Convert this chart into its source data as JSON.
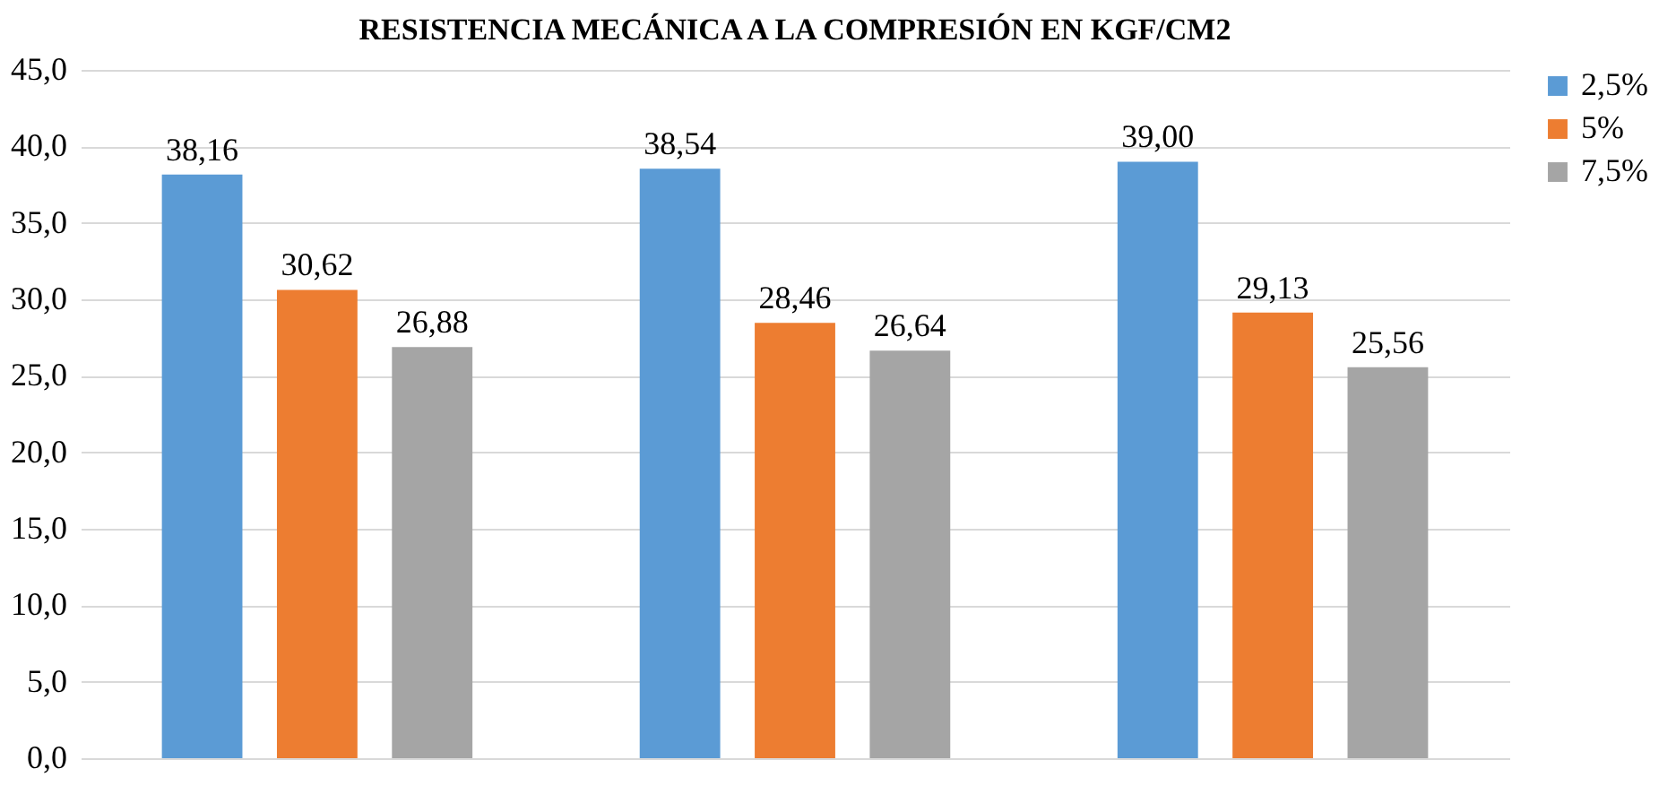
{
  "chart_data": {
    "type": "bar",
    "title": "RESISTENCIA MECÁNICA A LA COMPRESIÓN EN KGF/CM2",
    "categories": [
      null,
      null,
      null
    ],
    "series": [
      {
        "name": "2,5%",
        "color": "#5b9bd5",
        "values": [
          38.16,
          38.54,
          39.0
        ],
        "value_labels": [
          "38,16",
          "38,54",
          "39,00"
        ]
      },
      {
        "name": "5%",
        "color": "#ed7d31",
        "values": [
          30.62,
          28.46,
          29.13
        ],
        "value_labels": [
          "30,62",
          "28,46",
          "29,13"
        ]
      },
      {
        "name": "7,5%",
        "color": "#a5a5a5",
        "values": [
          26.88,
          26.64,
          25.56
        ],
        "value_labels": [
          "26,88",
          "26,64",
          "25,56"
        ]
      }
    ],
    "ylim": [
      0,
      45
    ],
    "yticks": [
      {
        "value": 0,
        "label": "0,0"
      },
      {
        "value": 5,
        "label": "5,0"
      },
      {
        "value": 10,
        "label": "10,0"
      },
      {
        "value": 15,
        "label": "15,0"
      },
      {
        "value": 20,
        "label": "20,0"
      },
      {
        "value": 25,
        "label": "25,0"
      },
      {
        "value": 30,
        "label": "30,0"
      },
      {
        "value": 35,
        "label": "35,0"
      },
      {
        "value": 40,
        "label": "40,0"
      },
      {
        "value": 45,
        "label": "45,0"
      }
    ],
    "grid": "y",
    "legend": "right"
  }
}
